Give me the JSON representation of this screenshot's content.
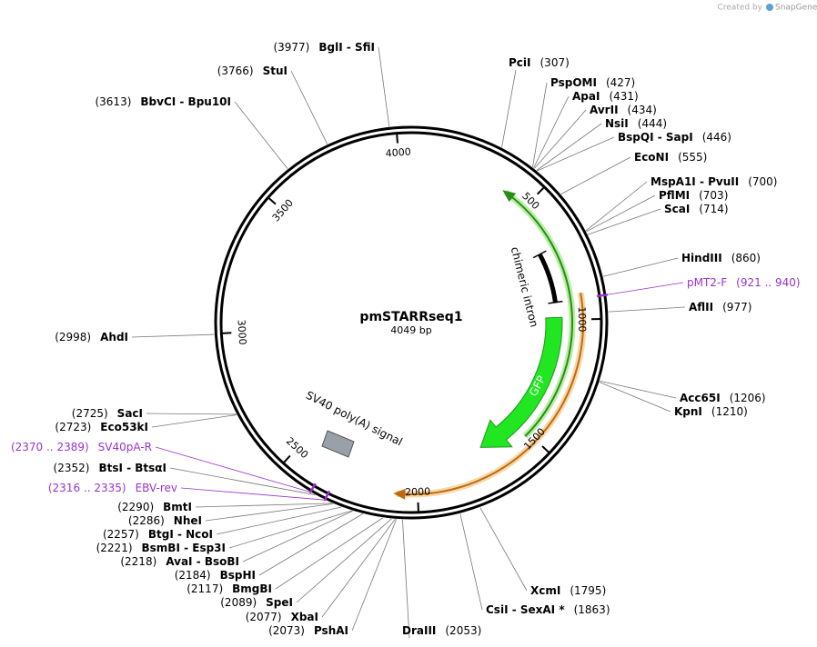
{
  "header": {
    "credit": "Created by",
    "brand": "SnapGene"
  },
  "plasmid": {
    "name": "pmSTARRseq1",
    "length": "4049 bp"
  },
  "ticks": [
    "500",
    "1000",
    "1500",
    "2000",
    "2500",
    "3000",
    "3500",
    "4000"
  ],
  "sites": [
    {
      "name": "PciI",
      "position": "(307)"
    },
    {
      "name": "PspOMI",
      "position": "(427)"
    },
    {
      "name": "ApaI",
      "position": "(431)"
    },
    {
      "name": "AvrII",
      "position": "(434)"
    },
    {
      "name": "NsiI",
      "position": "(444)"
    },
    {
      "name": "BspQI  -  SapI",
      "position": "(446)"
    },
    {
      "name": "EcoNI",
      "position": "(555)"
    },
    {
      "name": "MspA1I  -  PvuII",
      "position": "(700)"
    },
    {
      "name": "PflMI",
      "position": "(703)"
    },
    {
      "name": "ScaI",
      "position": "(714)"
    },
    {
      "name": "HindIII",
      "position": "(860)"
    },
    {
      "name": "AflII",
      "position": "(977)"
    },
    {
      "name": "Acc65I",
      "position": "(1206)"
    },
    {
      "name": "KpnI",
      "position": "(1210)"
    },
    {
      "name": "XcmI",
      "position": "(1795)"
    },
    {
      "name": "CsiI  -  SexAI *",
      "position": "(1863)"
    },
    {
      "name": "DraIII",
      "position": "(2053)"
    },
    {
      "name": "PshAI",
      "position": "(2073)"
    },
    {
      "name": "XbaI",
      "position": "(2077)"
    },
    {
      "name": "SpeI",
      "position": "(2089)"
    },
    {
      "name": "BmgBI",
      "position": "(2117)"
    },
    {
      "name": "BspHI",
      "position": "(2184)"
    },
    {
      "name": "AvaI  -  BsoBI",
      "position": "(2218)"
    },
    {
      "name": "BsmBI  -  Esp3I",
      "position": "(2221)"
    },
    {
      "name": "BtgI  -  NcoI",
      "position": "(2257)"
    },
    {
      "name": "NheI",
      "position": "(2286)"
    },
    {
      "name": "BmtI",
      "position": "(2290)"
    },
    {
      "name": "BtsI  -  BtsαI",
      "position": "(2352)"
    },
    {
      "name": "SacI",
      "position": "(2725)"
    },
    {
      "name": "Eco53kI",
      "position": "(2723)"
    },
    {
      "name": "AhdI",
      "position": "(2998)"
    },
    {
      "name": "BbvCI  -  Bpu10I",
      "position": "(3613)"
    },
    {
      "name": "StuI",
      "position": "(3766)"
    },
    {
      "name": "BglI  -  SfiI",
      "position": "(3977)"
    }
  ],
  "primers": [
    {
      "name": "pMT2-F",
      "position": "(921 .. 940)"
    },
    {
      "name": "EBV-rev",
      "position": "(2316 .. 2335)"
    },
    {
      "name": "SV40pA-R",
      "position": "(2370 .. 2389)"
    }
  ],
  "features": [
    {
      "label": "chimeric intron"
    },
    {
      "label": "GFP"
    },
    {
      "label": "SV40 poly(A) signal"
    }
  ]
}
